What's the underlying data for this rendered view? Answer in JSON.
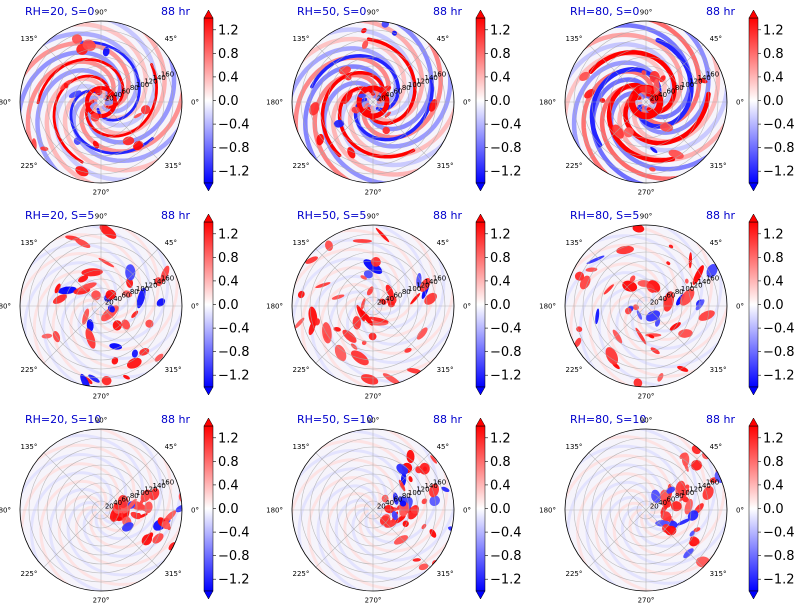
{
  "chart_data": {
    "type": "heatmap",
    "layout": {
      "rows": 3,
      "cols": 3
    },
    "panels": [
      {
        "title": "RH=20, S=0",
        "time": "88 hr",
        "pattern": "spiral",
        "amp": 0.8,
        "shear": 0
      },
      {
        "title": "RH=50, S=0",
        "time": "88 hr",
        "pattern": "spiral",
        "amp": 1.0,
        "shear": 0
      },
      {
        "title": "RH=80, S=0",
        "time": "88 hr",
        "pattern": "spiral",
        "amp": 1.3,
        "shear": 0
      },
      {
        "title": "RH=20, S=5",
        "time": "88 hr",
        "pattern": "cells",
        "amp": 1.0,
        "shear": 5
      },
      {
        "title": "RH=50, S=5",
        "time": "88 hr",
        "pattern": "cells",
        "amp": 1.2,
        "shear": 5
      },
      {
        "title": "RH=80, S=5",
        "time": "88 hr",
        "pattern": "cells",
        "amp": 1.3,
        "shear": 5
      },
      {
        "title": "RH=20, S=10",
        "time": "88 hr",
        "pattern": "sheared",
        "amp": 0.9,
        "shear": 10
      },
      {
        "title": "RH=50, S=10",
        "time": "88 hr",
        "pattern": "sheared",
        "amp": 1.0,
        "shear": 10
      },
      {
        "title": "RH=80, S=10",
        "time": "88 hr",
        "pattern": "sheared",
        "amp": 1.0,
        "shear": 10
      }
    ],
    "angle_labels": [
      "0°",
      "45°",
      "90°",
      "135°",
      "180°",
      "225°",
      "270°",
      "315°"
    ],
    "angle_values": [
      0,
      45,
      90,
      135,
      180,
      225,
      270,
      315
    ],
    "radial_ticks": [
      "20",
      "40",
      "60",
      "80",
      "100",
      "120",
      "140",
      "160"
    ],
    "radial_values": [
      20,
      40,
      60,
      80,
      100,
      120,
      140,
      160
    ],
    "radial_max": 180,
    "radial_label_angle": 22.5,
    "colorbar": {
      "ticks": [
        "1.2",
        "0.8",
        "0.4",
        "0.0",
        "−0.4",
        "−0.8",
        "−1.2"
      ],
      "tick_values": [
        1.2,
        0.8,
        0.4,
        0.0,
        -0.4,
        -0.8,
        -1.2
      ],
      "vmin": -1.4,
      "vmax": 1.4,
      "colormap": "bwr",
      "extend": "both"
    },
    "colors": {
      "title": "#0000cc",
      "low": "#0000ff",
      "mid": "#ffffff",
      "high": "#ff0000",
      "grid": "#888888"
    }
  }
}
